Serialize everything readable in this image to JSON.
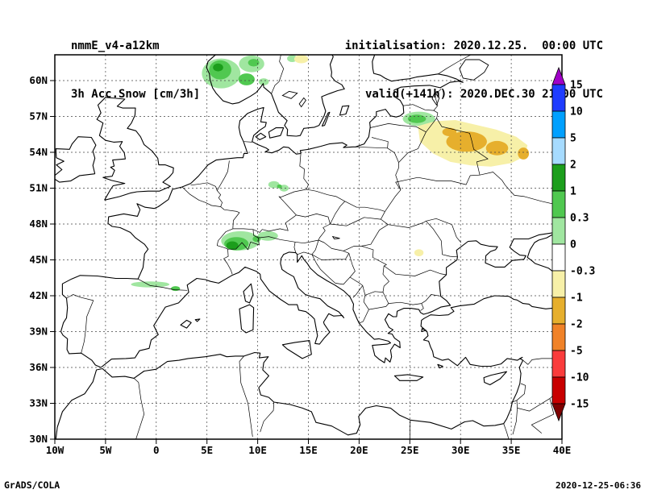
{
  "header": {
    "model": "nmmE_v4-a12km",
    "variable": "3h Acc.Snow [cm/3h]",
    "init_line": "initialisation: 2020.12.25.  00:00 UTC",
    "valid_line": "valid(+141h): 2020.DEC.30 21:00 UTC"
  },
  "footer": {
    "credit": "GrADS/COLA",
    "timestamp": "2020-12-25-06:36"
  },
  "axes": {
    "lat_labels": [
      "30N",
      "33N",
      "36N",
      "39N",
      "42N",
      "45N",
      "48N",
      "51N",
      "54N",
      "57N",
      "60N"
    ],
    "lat_values": [
      30,
      33,
      36,
      39,
      42,
      45,
      48,
      51,
      54,
      57,
      60
    ],
    "lon_labels": [
      "10W",
      "5W",
      "0",
      "5E",
      "10E",
      "15E",
      "20E",
      "25E",
      "30E",
      "35E",
      "40E"
    ],
    "lon_values": [
      -10,
      -5,
      0,
      5,
      10,
      15,
      20,
      25,
      30,
      35,
      40
    ]
  },
  "colorbar": {
    "labels_top_to_bottom": [
      "15",
      "10",
      "5",
      "2",
      "1",
      "0.3",
      "0",
      "-0.3",
      "-1",
      "-2",
      "-5",
      "-10",
      "-15"
    ],
    "segment_colors_top_to_bottom": [
      "#1E3CFF",
      "#00A0FF",
      "#A6DBFF",
      "#1C9E1C",
      "#50C850",
      "#A0E6A0",
      "#FFFFFF",
      "#F7F0A8",
      "#E6AF2D",
      "#F08228",
      "#FA3C3C",
      "#C80000"
    ],
    "arrow_top_color": "#A000C8",
    "arrow_bottom_color": "#7E0000"
  },
  "chart_data": {
    "type": "heatmap",
    "subtype": "filled_contour_weather_map",
    "title": "3h Acc.Snow [cm/3h]",
    "model": "nmmE_v4-a12km",
    "init": "2020.12.25. 00:00 UTC",
    "valid": "2020.DEC.30 21:00 UTC (+141h)",
    "region": "Europe",
    "lon_range": [
      -10,
      40
    ],
    "lat_range": [
      30,
      62.2
    ],
    "units": "cm/3h",
    "levels": [
      -15,
      -10,
      -5,
      -2,
      -1,
      -0.3,
      0,
      0.3,
      1,
      2,
      5,
      10,
      15
    ],
    "colors_low_to_high": [
      "#7E0000",
      "#C80000",
      "#FA3C3C",
      "#F08228",
      "#E6AF2D",
      "#F7F0A8",
      "#FFFFFF",
      "#A0E6A0",
      "#50C850",
      "#1C9E1C",
      "#A6DBFF",
      "#00A0FF",
      "#1E3CFF",
      "#A000C8"
    ],
    "grid": "dashed, 5 deg lon x 3 deg lat",
    "legend_position": "right",
    "patches": [
      {
        "shape": "ellipse",
        "lon": 6.4,
        "lat": 60.6,
        "rx": 1.9,
        "ry": 1.25,
        "color": "#A0E6A0",
        "value": "0 to 0.3"
      },
      {
        "shape": "ellipse",
        "lon": 6.3,
        "lat": 60.9,
        "rx": 1.1,
        "ry": 0.8,
        "color": "#50C850",
        "value": "0.3 to 1"
      },
      {
        "shape": "ellipse",
        "lon": 6.1,
        "lat": 61.1,
        "rx": 0.5,
        "ry": 0.33,
        "color": "#1C9E1C",
        "value": "1 to 2"
      },
      {
        "shape": "ellipse",
        "lon": 9.4,
        "lat": 61.4,
        "rx": 1.25,
        "ry": 0.7,
        "color": "#A0E6A0",
        "value": "0 to 0.3"
      },
      {
        "shape": "ellipse",
        "lon": 9.6,
        "lat": 61.5,
        "rx": 0.55,
        "ry": 0.32,
        "color": "#50C850",
        "value": "0.3 to 1"
      },
      {
        "shape": "ellipse",
        "lon": 8.9,
        "lat": 60.1,
        "rx": 0.8,
        "ry": 0.5,
        "color": "#50C850",
        "value": "0.3 to 1"
      },
      {
        "shape": "ellipse",
        "lon": 10.6,
        "lat": 59.9,
        "rx": 0.5,
        "ry": 0.3,
        "color": "#A0E6A0",
        "value": "0 to 0.3"
      },
      {
        "shape": "ellipse",
        "lon": 13.4,
        "lat": 61.85,
        "rx": 0.5,
        "ry": 0.3,
        "color": "#A0E6A0",
        "value": "0 to 0.3"
      },
      {
        "shape": "ellipse",
        "lon": 14.3,
        "lat": 61.8,
        "rx": 0.7,
        "ry": 0.35,
        "color": "#F7F0A8",
        "value": "-1 to -0.3"
      },
      {
        "shape": "ellipse",
        "lon": 8.3,
        "lat": 46.6,
        "rx": 1.9,
        "ry": 0.8,
        "color": "#A0E6A0",
        "value": "0 to 0.3"
      },
      {
        "shape": "ellipse",
        "lon": 7.9,
        "lat": 46.35,
        "rx": 1.2,
        "ry": 0.55,
        "color": "#50C850",
        "value": "0.3 to 1"
      },
      {
        "shape": "ellipse",
        "lon": 7.5,
        "lat": 46.2,
        "rx": 0.6,
        "ry": 0.35,
        "color": "#1C9E1C",
        "value": "1 to 2"
      },
      {
        "shape": "ellipse",
        "lon": 11.0,
        "lat": 47.0,
        "rx": 1.0,
        "ry": 0.4,
        "color": "#A0E6A0",
        "value": "0 to 0.3"
      },
      {
        "shape": "ellipse",
        "lon": 9.9,
        "lat": 46.75,
        "rx": 0.4,
        "ry": 0.25,
        "color": "#50C850",
        "value": "0.3 to 1"
      },
      {
        "shape": "ellipse",
        "lon": -0.6,
        "lat": 42.95,
        "rx": 1.9,
        "ry": 0.25,
        "color": "#A0E6A0",
        "value": "0 to 0.3"
      },
      {
        "shape": "ellipse",
        "lon": 1.9,
        "lat": 42.6,
        "rx": 0.45,
        "ry": 0.2,
        "color": "#50C850",
        "value": "0.3 to 1"
      },
      {
        "shape": "ellipse",
        "lon": 11.6,
        "lat": 51.3,
        "rx": 0.55,
        "ry": 0.3,
        "color": "#A0E6A0",
        "value": "0 to 0.3"
      },
      {
        "shape": "ellipse",
        "lon": 12.6,
        "lat": 51.0,
        "rx": 0.45,
        "ry": 0.28,
        "color": "#A0E6A0",
        "value": "0 to 0.3"
      },
      {
        "shape": "ellipse",
        "lon": 12.15,
        "lat": 51.15,
        "rx": 0.25,
        "ry": 0.16,
        "color": "#50C850",
        "value": "0.3 to 1"
      },
      {
        "shape": "ellipse",
        "lon": 25.9,
        "lat": 56.8,
        "rx": 1.6,
        "ry": 0.6,
        "color": "#A0E6A0",
        "value": "0 to 0.3"
      },
      {
        "shape": "ellipse",
        "lon": 25.7,
        "lat": 56.8,
        "rx": 0.9,
        "ry": 0.35,
        "color": "#50C850",
        "value": "0.3 to 1"
      },
      {
        "shape": "polygon",
        "points": [
          [
            25.8,
            56.2
          ],
          [
            27.5,
            56.6
          ],
          [
            29.5,
            56.7
          ],
          [
            31.5,
            56.3
          ],
          [
            33.5,
            55.9
          ],
          [
            35.5,
            55.3
          ],
          [
            36.6,
            54.6
          ],
          [
            36.4,
            53.7
          ],
          [
            35.0,
            53.1
          ],
          [
            33.0,
            52.8
          ],
          [
            31.0,
            52.9
          ],
          [
            29.0,
            53.2
          ],
          [
            27.3,
            53.9
          ],
          [
            26.0,
            54.9
          ]
        ],
        "color": "#F7F0A8",
        "value": "-1 to -0.3"
      },
      {
        "shape": "ellipse",
        "lon": 30.6,
        "lat": 54.9,
        "rx": 2.0,
        "ry": 0.85,
        "color": "#E6AF2D",
        "value": "-2 to -1"
      },
      {
        "shape": "ellipse",
        "lon": 33.6,
        "lat": 54.35,
        "rx": 1.1,
        "ry": 0.6,
        "color": "#E6AF2D",
        "value": "-2 to -1"
      },
      {
        "shape": "ellipse",
        "lon": 28.9,
        "lat": 55.7,
        "rx": 0.7,
        "ry": 0.35,
        "color": "#E6AF2D",
        "value": "-2 to -1"
      },
      {
        "shape": "ellipse",
        "lon": 36.2,
        "lat": 53.9,
        "rx": 0.55,
        "ry": 0.5,
        "color": "#E6AF2D",
        "value": "-2 to -1"
      },
      {
        "shape": "ellipse",
        "lon": 25.9,
        "lat": 45.6,
        "rx": 0.45,
        "ry": 0.3,
        "color": "#F7F0A8",
        "value": "-1 to -0.3"
      }
    ]
  }
}
